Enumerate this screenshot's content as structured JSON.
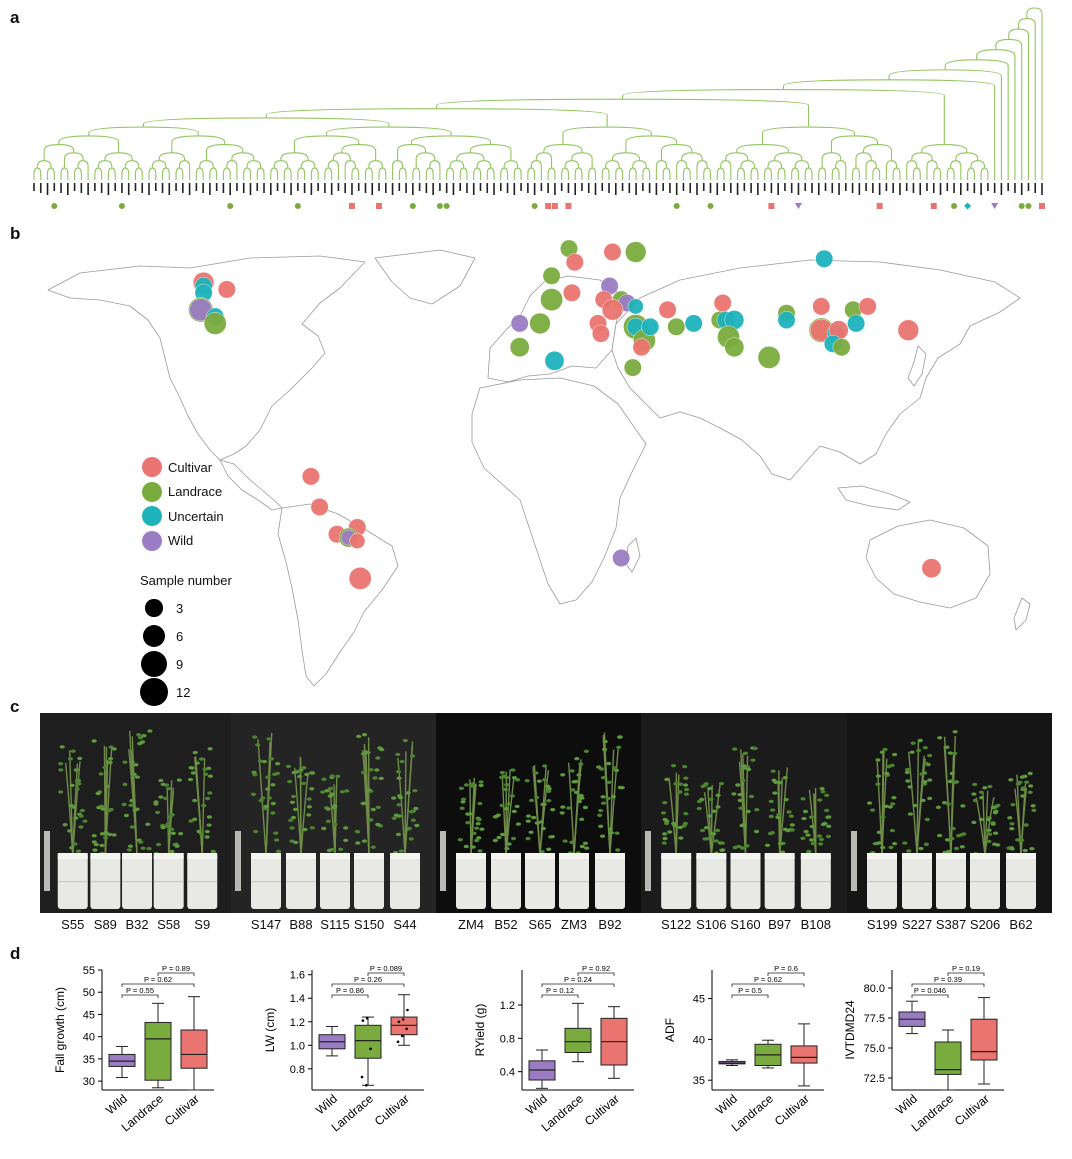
{
  "panels": {
    "a": "a",
    "b": "b",
    "c": "c",
    "d": "d"
  },
  "tree": {
    "leaf_count": 150,
    "leaf_markers": [
      {
        "leaf": 4,
        "type": "Landrace"
      },
      {
        "leaf": 14,
        "type": "Landrace"
      },
      {
        "leaf": 30,
        "type": "Landrace"
      },
      {
        "leaf": 40,
        "type": "Landrace"
      },
      {
        "leaf": 48,
        "type": "Cultivar"
      },
      {
        "leaf": 52,
        "type": "Cultivar"
      },
      {
        "leaf": 57,
        "type": "Landrace"
      },
      {
        "leaf": 61,
        "type": "Landrace"
      },
      {
        "leaf": 62,
        "type": "Landrace"
      },
      {
        "leaf": 75,
        "type": "Landrace"
      },
      {
        "leaf": 77,
        "type": "Cultivar"
      },
      {
        "leaf": 78,
        "type": "Cultivar"
      },
      {
        "leaf": 80,
        "type": "Cultivar"
      },
      {
        "leaf": 96,
        "type": "Landrace"
      },
      {
        "leaf": 101,
        "type": "Landrace"
      },
      {
        "leaf": 110,
        "type": "Cultivar"
      },
      {
        "leaf": 114,
        "type": "Wild"
      },
      {
        "leaf": 126,
        "type": "Cultivar"
      },
      {
        "leaf": 134,
        "type": "Cultivar"
      },
      {
        "leaf": 137,
        "type": "Landrace"
      },
      {
        "leaf": 139,
        "type": "Uncertain"
      },
      {
        "leaf": 143,
        "type": "Wild"
      },
      {
        "leaf": 147,
        "type": "Landrace"
      },
      {
        "leaf": 148,
        "type": "Landrace"
      },
      {
        "leaf": 150,
        "type": "Cultivar"
      }
    ]
  },
  "colors": {
    "Cultivar": "#ea7470",
    "Landrace": "#7aab3e",
    "Uncertain": "#1fb2ba",
    "Wild": "#9a7cc2",
    "tree": "#93c560"
  },
  "map": {
    "legend": [
      {
        "label": "Cultivar",
        "key": "Cultivar"
      },
      {
        "label": "Landrace",
        "key": "Landrace"
      },
      {
        "label": "Uncertain",
        "key": "Uncertain"
      },
      {
        "label": "Wild",
        "key": "Wild"
      }
    ],
    "size_title": "Sample number",
    "sizes": [
      {
        "label": "3",
        "n": 3
      },
      {
        "label": "6",
        "n": 6
      },
      {
        "label": "9",
        "n": 9
      },
      {
        "label": "12",
        "n": 12
      }
    ],
    "points": [
      {
        "lon": -116,
        "lat": 51,
        "n": 5,
        "type": "Cultivar"
      },
      {
        "lon": -116,
        "lat": 50,
        "n": 3,
        "type": "Uncertain"
      },
      {
        "lon": -116,
        "lat": 48,
        "n": 3,
        "type": "Uncertain"
      },
      {
        "lon": -108,
        "lat": 49,
        "n": 3,
        "type": "Cultivar"
      },
      {
        "lon": -117,
        "lat": 43,
        "n": 8,
        "type": "Landrace"
      },
      {
        "lon": -117,
        "lat": 43,
        "n": 6,
        "type": "Wild"
      },
      {
        "lon": -112,
        "lat": 41,
        "n": 3,
        "type": "Uncertain"
      },
      {
        "lon": -112,
        "lat": 39,
        "n": 6,
        "type": "Landrace"
      },
      {
        "lon": -79,
        "lat": -6,
        "n": 3,
        "type": "Cultivar"
      },
      {
        "lon": -76,
        "lat": -15,
        "n": 3,
        "type": "Cultivar"
      },
      {
        "lon": -70,
        "lat": -23,
        "n": 3,
        "type": "Cultivar"
      },
      {
        "lon": -63,
        "lat": -21,
        "n": 3,
        "type": "Cultivar"
      },
      {
        "lon": -66,
        "lat": -24,
        "n": 4,
        "type": "Landrace"
      },
      {
        "lon": -66,
        "lat": -24,
        "n": 2,
        "type": "Wild"
      },
      {
        "lon": -63,
        "lat": -25,
        "n": 2,
        "type": "Cultivar"
      },
      {
        "lon": -62,
        "lat": -36,
        "n": 6,
        "type": "Cultivar"
      },
      {
        "lon": 10,
        "lat": 61,
        "n": 3,
        "type": "Landrace"
      },
      {
        "lon": 25,
        "lat": 60,
        "n": 3,
        "type": "Cultivar"
      },
      {
        "lon": 33,
        "lat": 60,
        "n": 5,
        "type": "Landrace"
      },
      {
        "lon": 12,
        "lat": 57,
        "n": 3,
        "type": "Cultivar"
      },
      {
        "lon": 4,
        "lat": 53,
        "n": 3,
        "type": "Landrace"
      },
      {
        "lon": 24,
        "lat": 50,
        "n": 3,
        "type": "Wild"
      },
      {
        "lon": 11,
        "lat": 48,
        "n": 3,
        "type": "Cultivar"
      },
      {
        "lon": 4,
        "lat": 46,
        "n": 6,
        "type": "Landrace"
      },
      {
        "lon": 22,
        "lat": 46,
        "n": 3,
        "type": "Cultivar"
      },
      {
        "lon": 28,
        "lat": 46,
        "n": 3,
        "type": "Landrace"
      },
      {
        "lon": 30,
        "lat": 45,
        "n": 3,
        "type": "Wild"
      },
      {
        "lon": 25,
        "lat": 43,
        "n": 5,
        "type": "Cultivar"
      },
      {
        "lon": 33,
        "lat": 44,
        "n": 2,
        "type": "Uncertain"
      },
      {
        "lon": -7,
        "lat": 39,
        "n": 3,
        "type": "Wild"
      },
      {
        "lon": 0,
        "lat": 39,
        "n": 5,
        "type": "Landrace"
      },
      {
        "lon": -7,
        "lat": 32,
        "n": 4,
        "type": "Landrace"
      },
      {
        "lon": 5,
        "lat": 28,
        "n": 4,
        "type": "Uncertain"
      },
      {
        "lon": 20,
        "lat": 39,
        "n": 3,
        "type": "Cultivar"
      },
      {
        "lon": 21,
        "lat": 36,
        "n": 3,
        "type": "Cultivar"
      },
      {
        "lon": 44,
        "lat": 43,
        "n": 3,
        "type": "Cultivar"
      },
      {
        "lon": 33,
        "lat": 38,
        "n": 8,
        "type": "Landrace"
      },
      {
        "lon": 33,
        "lat": 38,
        "n": 3,
        "type": "Uncertain"
      },
      {
        "lon": 36,
        "lat": 34,
        "n": 6,
        "type": "Landrace"
      },
      {
        "lon": 35,
        "lat": 32,
        "n": 3,
        "type": "Cultivar"
      },
      {
        "lon": 38,
        "lat": 38,
        "n": 3,
        "type": "Uncertain"
      },
      {
        "lon": 32,
        "lat": 26,
        "n": 3,
        "type": "Landrace"
      },
      {
        "lon": 47,
        "lat": 38,
        "n": 3,
        "type": "Landrace"
      },
      {
        "lon": 53,
        "lat": 39,
        "n": 3,
        "type": "Uncertain"
      },
      {
        "lon": 63,
        "lat": 45,
        "n": 3,
        "type": "Cultivar"
      },
      {
        "lon": 62,
        "lat": 40,
        "n": 3,
        "type": "Landrace"
      },
      {
        "lon": 64,
        "lat": 40,
        "n": 3,
        "type": "Uncertain"
      },
      {
        "lon": 67,
        "lat": 40,
        "n": 4,
        "type": "Uncertain"
      },
      {
        "lon": 65,
        "lat": 35,
        "n": 6,
        "type": "Landrace"
      },
      {
        "lon": 67,
        "lat": 32,
        "n": 4,
        "type": "Landrace"
      },
      {
        "lon": 79,
        "lat": 29,
        "n": 6,
        "type": "Landrace"
      },
      {
        "lon": 85,
        "lat": 42,
        "n": 3,
        "type": "Landrace"
      },
      {
        "lon": 85,
        "lat": 40,
        "n": 3,
        "type": "Uncertain"
      },
      {
        "lon": 98,
        "lat": 58,
        "n": 3,
        "type": "Uncertain"
      },
      {
        "lon": 97,
        "lat": 44,
        "n": 3,
        "type": "Cultivar"
      },
      {
        "lon": 97,
        "lat": 37,
        "n": 8,
        "type": "Landrace"
      },
      {
        "lon": 97,
        "lat": 37,
        "n": 6,
        "type": "Cultivar"
      },
      {
        "lon": 102,
        "lat": 36,
        "n": 3,
        "type": "Uncertain"
      },
      {
        "lon": 103,
        "lat": 37,
        "n": 4,
        "type": "Cultivar"
      },
      {
        "lon": 101,
        "lat": 33,
        "n": 3,
        "type": "Uncertain"
      },
      {
        "lon": 104,
        "lat": 32,
        "n": 3,
        "type": "Landrace"
      },
      {
        "lon": 108,
        "lat": 43,
        "n": 3,
        "type": "Landrace"
      },
      {
        "lon": 109,
        "lat": 39,
        "n": 3,
        "type": "Uncertain"
      },
      {
        "lon": 113,
        "lat": 44,
        "n": 3,
        "type": "Cultivar"
      },
      {
        "lon": 127,
        "lat": 37,
        "n": 5,
        "type": "Cultivar"
      },
      {
        "lon": 135,
        "lat": -33,
        "n": 4,
        "type": "Cultivar"
      },
      {
        "lon": 28,
        "lat": -30,
        "n": 3,
        "type": "Wild"
      }
    ]
  },
  "photos": {
    "panels": [
      {
        "bg": "#1d1e1d",
        "labels": [
          "S55",
          "S89",
          "B32",
          "S58",
          "S9"
        ]
      },
      {
        "bg": "#232423",
        "labels": [
          "S147",
          "B88",
          "S115",
          "S150",
          "S44"
        ]
      },
      {
        "bg": "#0c0d0c",
        "labels": [
          "ZM4",
          "B52",
          "S65",
          "ZM3",
          "B92"
        ]
      },
      {
        "bg": "#1a1b1a",
        "labels": [
          "S122",
          "S106",
          "S160",
          "B97",
          "B108"
        ]
      },
      {
        "bg": "#151515",
        "labels": [
          "S199",
          "S227",
          "S387",
          "S206",
          "B62"
        ]
      }
    ]
  },
  "boxplots": [
    {
      "ylabel": "Fall growth (cm)",
      "ylim": [
        28,
        55
      ],
      "ticks": [
        {
          "v": 30,
          "t": "30"
        },
        {
          "v": 35,
          "t": "35"
        },
        {
          "v": 40,
          "t": "40"
        },
        {
          "v": 45,
          "t": "45"
        },
        {
          "v": 50,
          "t": "50"
        },
        {
          "v": 55,
          "t": "55"
        }
      ],
      "groups": [
        {
          "name": "Wild",
          "color": "#9a7cc2",
          "min": 30.8,
          "q1": 33.3,
          "median": 34.5,
          "q3": 36.0,
          "max": 37.8,
          "points": []
        },
        {
          "name": "Landrace",
          "color": "#7aab3e",
          "min": 28.5,
          "q1": 30.2,
          "median": 39.5,
          "q3": 43.2,
          "max": 47.5,
          "points": []
        },
        {
          "name": "Cultivar",
          "color": "#ea7470",
          "min": 28.0,
          "q1": 32.9,
          "median": 36.0,
          "q3": 41.5,
          "max": 49.0,
          "points": []
        }
      ],
      "pvalues": [
        {
          "text": "P = 0.55",
          "from": 0,
          "to": 1,
          "level": 0
        },
        {
          "text": "P = 0.62",
          "from": 0,
          "to": 2,
          "level": 1
        },
        {
          "text": "P = 0.89",
          "from": 1,
          "to": 2,
          "level": 2
        }
      ]
    },
    {
      "ylabel": "LW (cm)",
      "ylim": [
        0.62,
        1.64
      ],
      "ticks": [
        {
          "v": 0.8,
          "t": "0.8"
        },
        {
          "v": 1.0,
          "t": "1.0"
        },
        {
          "v": 1.2,
          "t": "1.2"
        },
        {
          "v": 1.4,
          "t": "1.4"
        },
        {
          "v": 1.6,
          "t": "1.6"
        }
      ],
      "groups": [
        {
          "name": "Wild",
          "color": "#9a7cc2",
          "min": 0.91,
          "q1": 0.97,
          "median": 1.03,
          "q3": 1.09,
          "max": 1.16,
          "points": []
        },
        {
          "name": "Landrace",
          "color": "#7aab3e",
          "min": 0.66,
          "q1": 0.89,
          "median": 1.04,
          "q3": 1.17,
          "max": 1.24,
          "points": [
            0.73,
            0.66,
            0.97,
            1.21,
            1.23
          ]
        },
        {
          "name": "Cultivar",
          "color": "#ea7470",
          "min": 1.0,
          "q1": 1.09,
          "median": 1.17,
          "q3": 1.24,
          "max": 1.43,
          "points": [
            1.03,
            1.08,
            1.14,
            1.2,
            1.22,
            1.3
          ]
        }
      ],
      "pvalues": [
        {
          "text": "P = 0.86",
          "from": 0,
          "to": 1,
          "level": 0
        },
        {
          "text": "P = 0.26",
          "from": 0,
          "to": 2,
          "level": 1
        },
        {
          "text": "P = 0.089",
          "from": 1,
          "to": 2,
          "level": 2
        }
      ]
    },
    {
      "ylabel": "RYield (g)",
      "ylim": [
        0.18,
        1.62
      ],
      "ticks": [
        {
          "v": 0.4,
          "t": "0.4"
        },
        {
          "v": 0.8,
          "t": "0.8"
        },
        {
          "v": 1.2,
          "t": "1.2"
        }
      ],
      "groups": [
        {
          "name": "Wild",
          "color": "#9a7cc2",
          "min": 0.2,
          "q1": 0.3,
          "median": 0.42,
          "q3": 0.53,
          "max": 0.66,
          "points": []
        },
        {
          "name": "Landrace",
          "color": "#7aab3e",
          "min": 0.52,
          "q1": 0.63,
          "median": 0.76,
          "q3": 0.92,
          "max": 1.22,
          "points": []
        },
        {
          "name": "Cultivar",
          "color": "#ea7470",
          "min": 0.32,
          "q1": 0.48,
          "median": 0.76,
          "q3": 1.04,
          "max": 1.18,
          "points": []
        }
      ],
      "pvalues": [
        {
          "text": "P = 0.12",
          "from": 0,
          "to": 1,
          "level": 0
        },
        {
          "text": "P = 0.24",
          "from": 0,
          "to": 2,
          "level": 1
        },
        {
          "text": "P = 0.92",
          "from": 1,
          "to": 2,
          "level": 2
        }
      ]
    },
    {
      "ylabel": "ADF",
      "ylim": [
        33.8,
        48.5
      ],
      "ticks": [
        {
          "v": 35,
          "t": "35"
        },
        {
          "v": 40,
          "t": "40"
        },
        {
          "v": 45,
          "t": "45"
        }
      ],
      "groups": [
        {
          "name": "Wild",
          "color": "#9a7cc2",
          "min": 36.8,
          "q1": 37.0,
          "median": 37.1,
          "q3": 37.3,
          "max": 37.5,
          "points": []
        },
        {
          "name": "Landrace",
          "color": "#7aab3e",
          "min": 36.5,
          "q1": 36.8,
          "median": 38.1,
          "q3": 39.4,
          "max": 39.9,
          "points": []
        },
        {
          "name": "Cultivar",
          "color": "#ea7470",
          "min": 34.3,
          "q1": 37.1,
          "median": 37.8,
          "q3": 39.2,
          "max": 41.9,
          "points": []
        }
      ],
      "pvalues": [
        {
          "text": "P = 0.5",
          "from": 0,
          "to": 1,
          "level": 0
        },
        {
          "text": "P = 0.62",
          "from": 0,
          "to": 2,
          "level": 1
        },
        {
          "text": "P = 0.6",
          "from": 1,
          "to": 2,
          "level": 2
        }
      ]
    },
    {
      "ylabel": "IVTDMD24",
      "ylim": [
        71.5,
        81.5
      ],
      "ticks": [
        {
          "v": 72.5,
          "t": "72.5"
        },
        {
          "v": 75,
          "t": "75.0"
        },
        {
          "v": 77.5,
          "t": "77.5"
        },
        {
          "v": 80,
          "t": "80.0"
        }
      ],
      "groups": [
        {
          "name": "Wild",
          "color": "#9a7cc2",
          "min": 76.2,
          "q1": 76.8,
          "median": 77.4,
          "q3": 78.0,
          "max": 78.9,
          "points": []
        },
        {
          "name": "Landrace",
          "color": "#7aab3e",
          "min": 71.5,
          "q1": 72.8,
          "median": 73.2,
          "q3": 75.5,
          "max": 76.5,
          "points": []
        },
        {
          "name": "Cultivar",
          "color": "#ea7470",
          "min": 72.0,
          "q1": 74.0,
          "median": 74.7,
          "q3": 77.4,
          "max": 79.2,
          "points": []
        }
      ],
      "pvalues": [
        {
          "text": "P = 0.046",
          "from": 0,
          "to": 1,
          "level": 0
        },
        {
          "text": "P = 0.39",
          "from": 0,
          "to": 2,
          "level": 1
        },
        {
          "text": "P = 0.19",
          "from": 1,
          "to": 2,
          "level": 2
        }
      ]
    }
  ]
}
